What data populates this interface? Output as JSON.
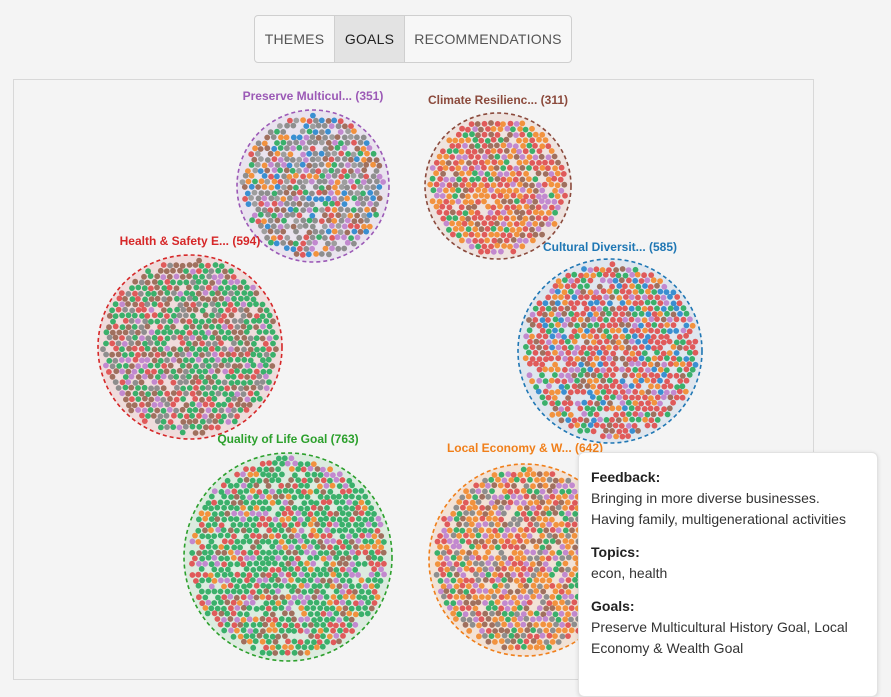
{
  "tabs": [
    {
      "label": "THEMES",
      "active": false
    },
    {
      "label": "GOALS",
      "active": true
    },
    {
      "label": "RECOMMENDATIONS",
      "active": false
    }
  ],
  "clusters": [
    {
      "label": "Preserve Multicul... (351)",
      "color": "#9b59b6",
      "fill": "#e9e3ee",
      "dot_colors": [
        "#8e8e8e",
        "#8e8e8e",
        "#9e9e9e",
        "#3a8fd1",
        "#c289cf",
        "#3ab06b",
        "#f2923e",
        "#e05a5a",
        "#a0705e"
      ]
    },
    {
      "label": "Climate Resilienc... (311)",
      "color": "#8b4a3c",
      "fill": "#eee3df",
      "dot_colors": [
        "#f2923e",
        "#c289cf",
        "#3ab06b",
        "#e05a5a",
        "#a0705e",
        "#e05a5a",
        "#f2923e"
      ]
    },
    {
      "label": "Health & Safety E... (594)",
      "color": "#d62728",
      "fill": "#efdcdc",
      "dot_colors": [
        "#3ab06b",
        "#3ab06b",
        "#3ab06b",
        "#a0705e",
        "#a0705e",
        "#c289cf",
        "#e05a5a",
        "#8e8e8e"
      ]
    },
    {
      "label": "Cultural Diversit... (585)",
      "color": "#1f77b4",
      "fill": "#dfe6ee",
      "dot_colors": [
        "#e05a5a",
        "#e05a5a",
        "#e05a5a",
        "#f2923e",
        "#c289cf",
        "#3ab06b",
        "#a0705e",
        "#3a8fd1"
      ]
    },
    {
      "label": "Quality of Life Goal (763)",
      "color": "#2ca02c",
      "fill": "#dcebdf",
      "dot_colors": [
        "#3ab06b",
        "#3ab06b",
        "#3ab06b",
        "#3ab06b",
        "#c289cf",
        "#a0705e",
        "#e05a5a",
        "#f2923e"
      ]
    },
    {
      "label": "Local Economy & W... (642)",
      "color": "#f07f1a",
      "fill": "#f2e2d6",
      "dot_colors": [
        "#f2923e",
        "#f2923e",
        "#a0705e",
        "#e05a5a",
        "#c289cf",
        "#3ab06b",
        "#8e8e8e"
      ]
    }
  ],
  "tooltip": {
    "feedback_heading": "Feedback:",
    "feedback_text": "Bringing in more diverse businesses. Having family, multigenerational activities",
    "topics_heading": "Topics:",
    "topics_text": "econ, health",
    "goals_heading": "Goals:",
    "goals_text": "Preserve Multicultural History Goal, Local Economy & Wealth Goal"
  }
}
